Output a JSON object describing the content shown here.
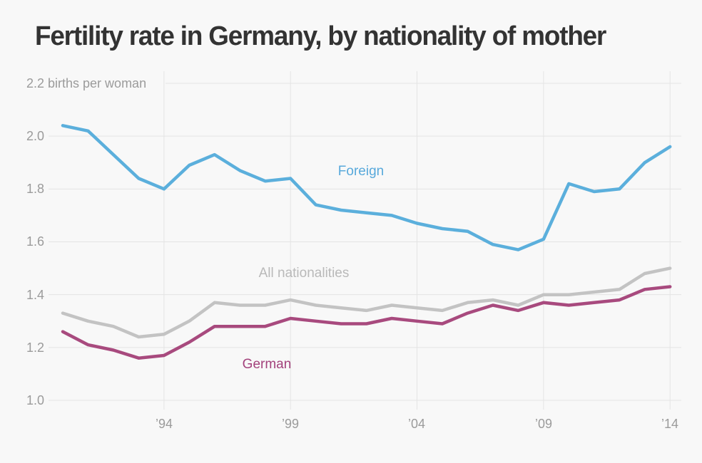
{
  "colors": {
    "background": "#f8f8f8",
    "title": "#333333",
    "axis_text": "#9b9b9b",
    "gridline": "#e4e4e4"
  },
  "chart_data": {
    "type": "line",
    "title": "Fertility rate in Germany, by nationality of mother",
    "ylabel_unit": "births per woman",
    "x": [
      1990,
      1991,
      1992,
      1993,
      1994,
      1995,
      1996,
      1997,
      1998,
      1999,
      2000,
      2001,
      2002,
      2003,
      2004,
      2005,
      2006,
      2007,
      2008,
      2009,
      2010,
      2011,
      2012,
      2013,
      2014
    ],
    "series": [
      {
        "name": "Foreign",
        "color": "#5bafdc",
        "label_color": "#58a9db",
        "values": [
          2.04,
          2.02,
          1.93,
          1.84,
          1.8,
          1.89,
          1.93,
          1.87,
          1.83,
          1.84,
          1.74,
          1.72,
          1.71,
          1.7,
          1.67,
          1.65,
          1.64,
          1.59,
          1.57,
          1.61,
          1.82,
          1.79,
          1.8,
          1.9,
          1.96
        ]
      },
      {
        "name": "All nationalities",
        "color": "#c3c3c3",
        "label_color": "#b9b9b9",
        "values": [
          1.33,
          1.3,
          1.28,
          1.24,
          1.25,
          1.3,
          1.37,
          1.36,
          1.36,
          1.38,
          1.36,
          1.35,
          1.34,
          1.36,
          1.35,
          1.34,
          1.37,
          1.38,
          1.36,
          1.4,
          1.4,
          1.41,
          1.42,
          1.48,
          1.5
        ]
      },
      {
        "name": "German",
        "color": "#a84a7e",
        "label_color": "#a3427c",
        "values": [
          1.26,
          1.21,
          1.19,
          1.16,
          1.17,
          1.22,
          1.28,
          1.28,
          1.28,
          1.31,
          1.3,
          1.29,
          1.29,
          1.31,
          1.3,
          1.29,
          1.33,
          1.36,
          1.34,
          1.37,
          1.36,
          1.37,
          1.38,
          1.42,
          1.43
        ]
      }
    ],
    "ylim": [
      1.0,
      2.2
    ],
    "yticks": [
      2.2,
      2.0,
      1.8,
      1.6,
      1.4,
      1.2,
      1.0
    ],
    "ytick_labels": [
      "2.2 births per woman",
      "2.0",
      "1.8",
      "1.6",
      "1.4",
      "1.2",
      "1.0"
    ],
    "xticks": [
      1994,
      1999,
      2004,
      2009,
      2014
    ],
    "xtick_labels": [
      "’94",
      "’99",
      "’04",
      "’09",
      "’14"
    ],
    "grid": true,
    "legend": "inline labels next to lines"
  }
}
